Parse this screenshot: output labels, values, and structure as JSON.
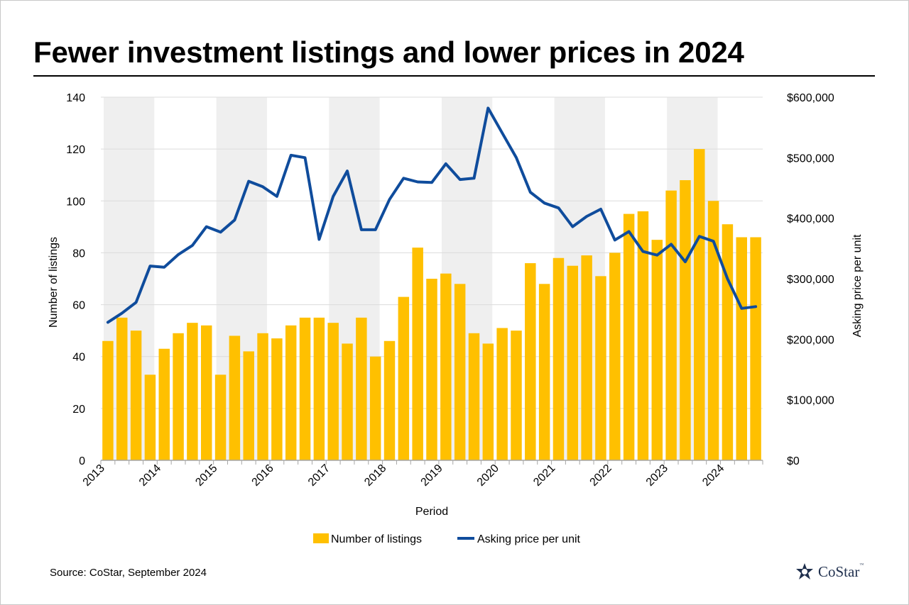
{
  "title": "Fewer investment listings and lower prices in 2024",
  "source": "Source: CoStar, September 2024",
  "logo": {
    "text": "CoStar",
    "tm": "™"
  },
  "colors": {
    "bar": "#FFC000",
    "line": "#0F4C9C",
    "band": "#EFEFEF",
    "grid": "#DCDCDC",
    "axis": "#A6A6A6",
    "logo": "#1F2F4D"
  },
  "chart_data": {
    "type": "bar+line",
    "xlabel": "Period",
    "ylabel_left": "Number  of listings",
    "ylabel_right": "Asking price per unit",
    "ylim_left": [
      0,
      140
    ],
    "ylim_right": [
      0,
      600000
    ],
    "yticks_left": [
      "0",
      "20",
      "40",
      "60",
      "80",
      "100",
      "120",
      "140"
    ],
    "yticks_right": [
      "$0",
      "$100,000",
      "$200,000",
      "$300,000",
      "$400,000",
      "$500,000",
      "$600,000"
    ],
    "x_year_labels": [
      "2013",
      "2014",
      "2015",
      "2016",
      "2017",
      "2018",
      "2019",
      "2020",
      "2021",
      "2022",
      "2023",
      "2024"
    ],
    "shaded_years": [
      "2013",
      "2015",
      "2017",
      "2019",
      "2021",
      "2023"
    ],
    "grid": true,
    "legend_position": "bottom",
    "series": [
      {
        "name": "Number of listings",
        "type": "bar",
        "axis": "left",
        "values": [
          46,
          55,
          50,
          33,
          43,
          49,
          53,
          52,
          33,
          48,
          42,
          49,
          47,
          52,
          55,
          55,
          53,
          45,
          55,
          40,
          46,
          63,
          82,
          70,
          72,
          68,
          49,
          45,
          51,
          50,
          76,
          68,
          78,
          75,
          79,
          71,
          80,
          95,
          96,
          85,
          104,
          108,
          120,
          100,
          91,
          86,
          86
        ]
      },
      {
        "name": "Asking price per unit",
        "type": "line",
        "axis": "right",
        "values": [
          228000,
          243000,
          261000,
          321000,
          319000,
          340000,
          355000,
          386000,
          377000,
          397000,
          461000,
          452000,
          436000,
          504000,
          500000,
          365000,
          436000,
          478000,
          381000,
          381000,
          431000,
          466000,
          460000,
          459000,
          490000,
          464000,
          466000,
          582000,
          541000,
          500000,
          443000,
          425000,
          417000,
          386000,
          403000,
          415000,
          364000,
          378000,
          345000,
          339000,
          357000,
          328000,
          370000,
          362000,
          300000,
          251000,
          254000
        ]
      }
    ]
  }
}
